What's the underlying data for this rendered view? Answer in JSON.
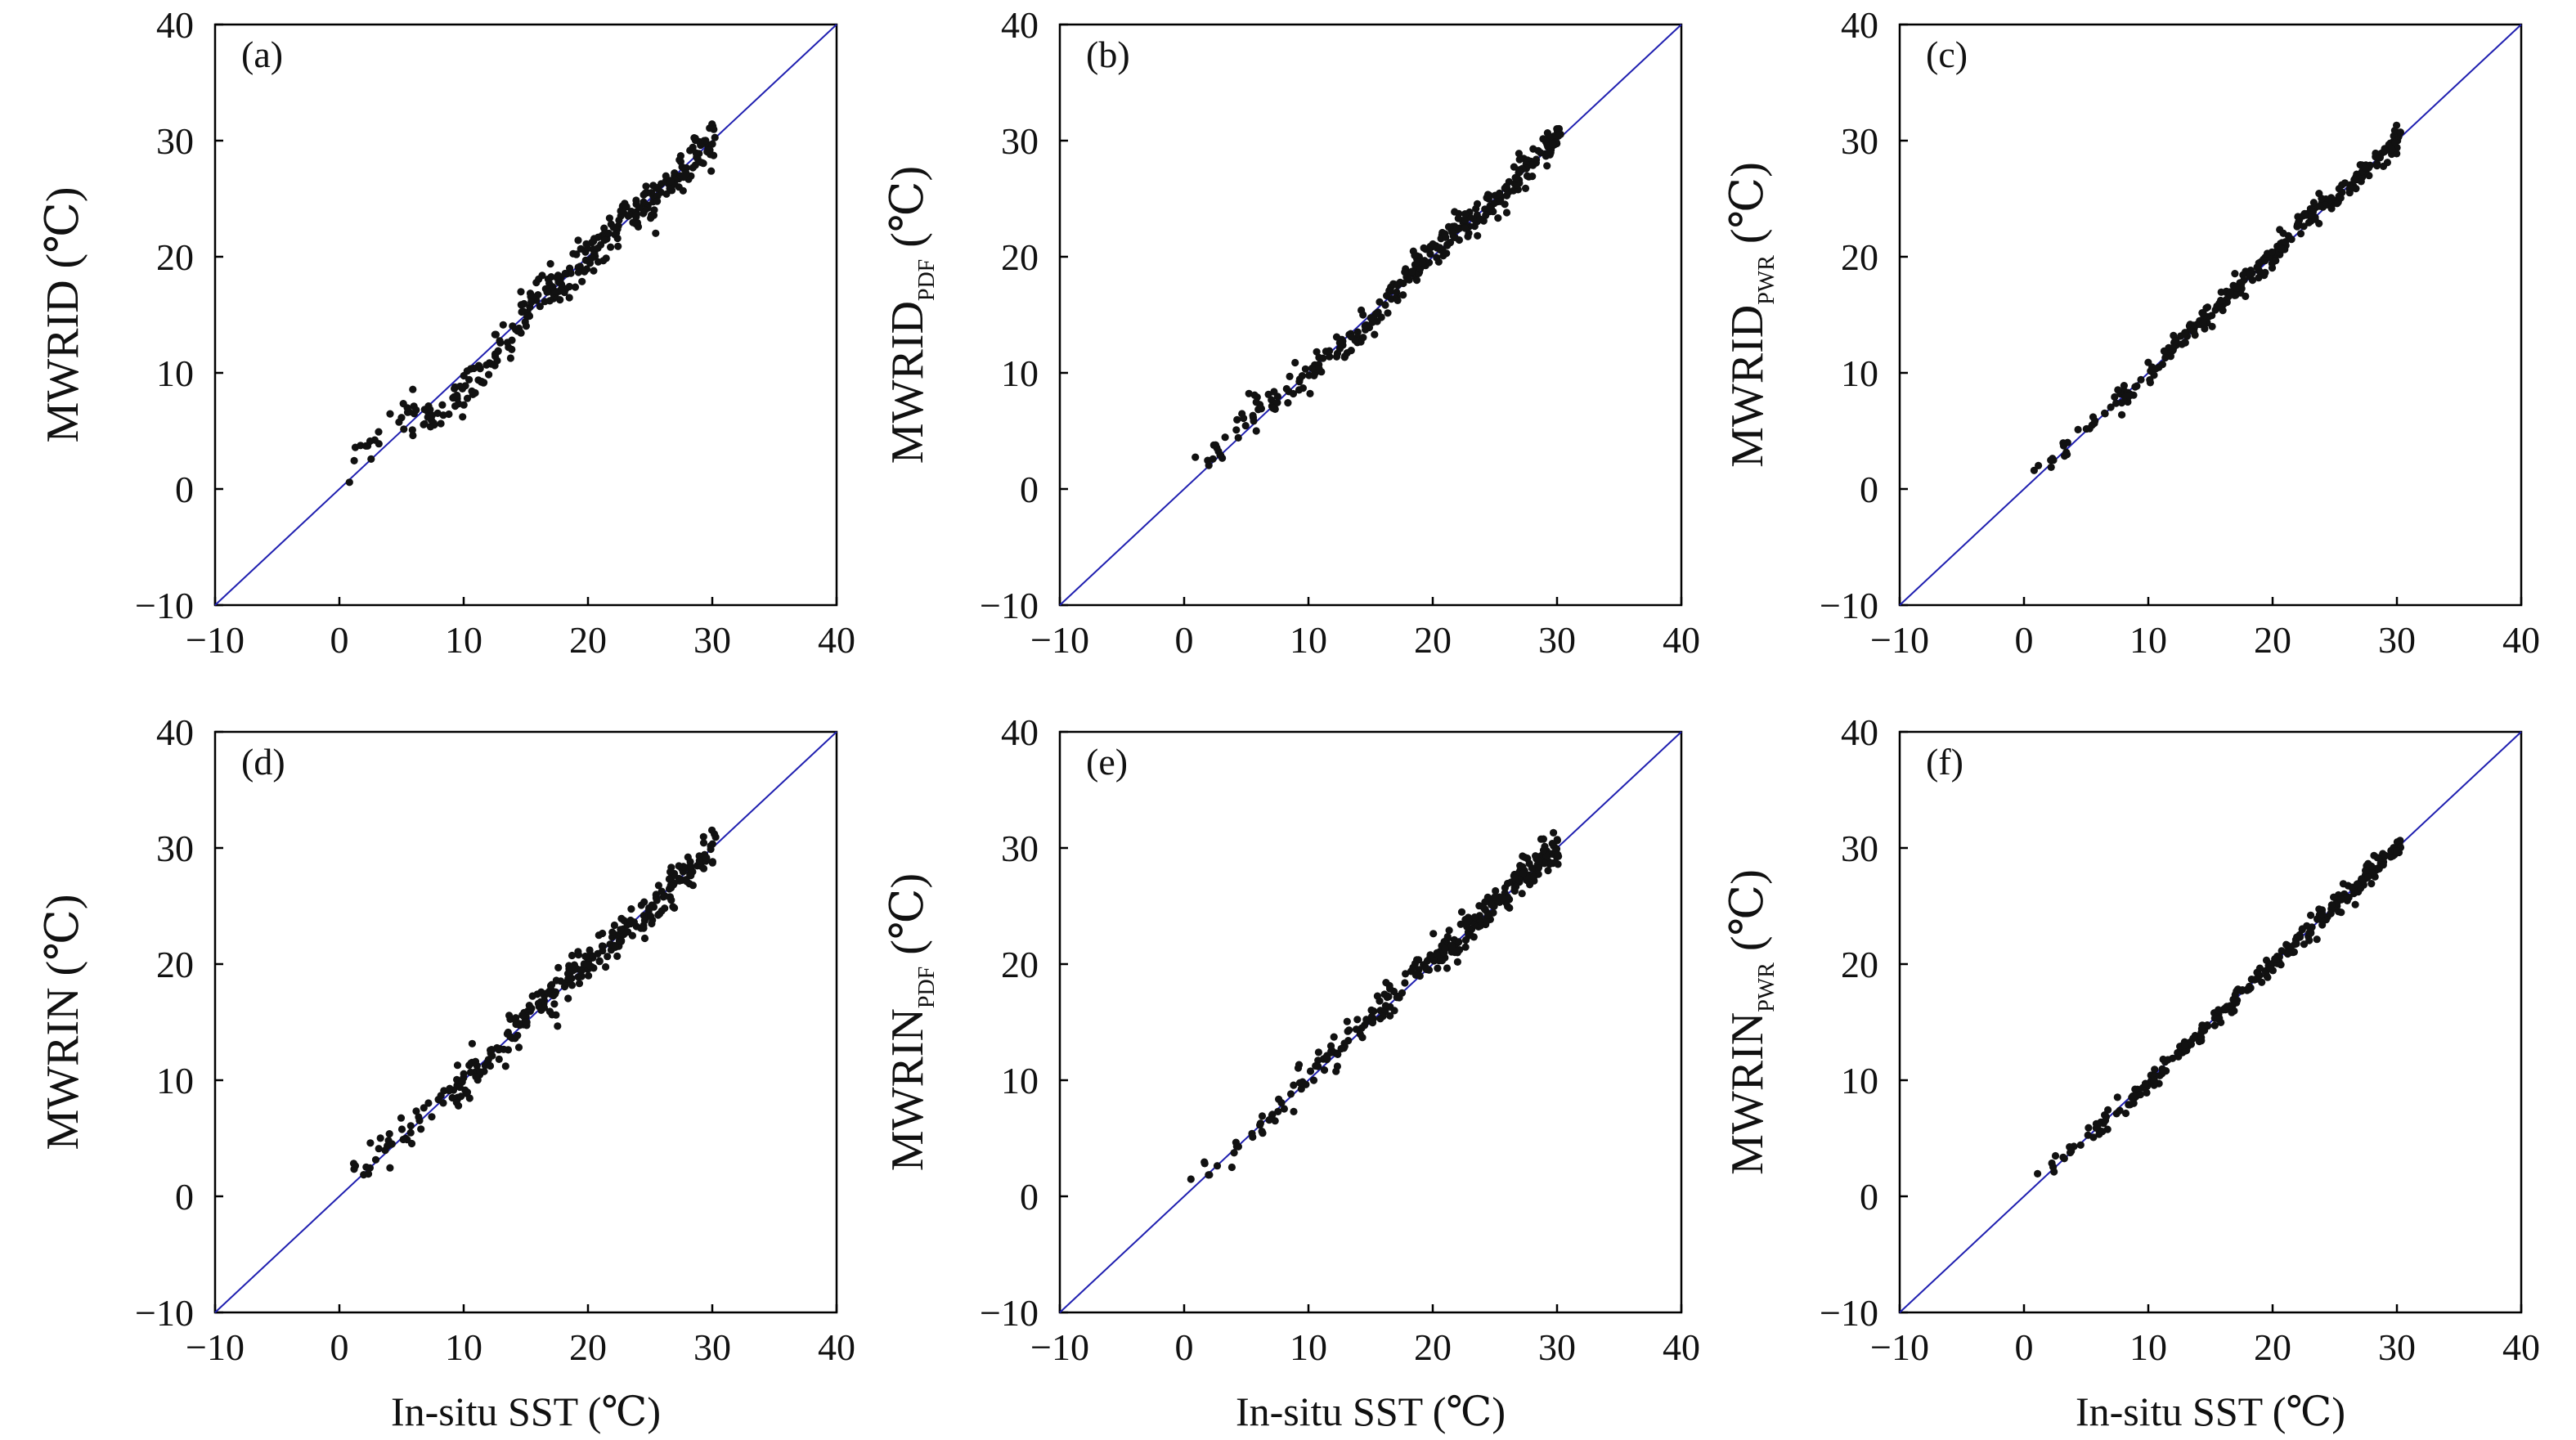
{
  "chart_data": [
    {
      "type": "scatter",
      "panel": "(a)",
      "ylabel": {
        "main": "MWRID",
        "sub": "",
        "unit": " (℃)"
      },
      "xlabel": "",
      "xlim": [
        -10,
        40
      ],
      "ylim": [
        -10,
        40
      ],
      "xticks": [
        "−10",
        "0",
        "10",
        "20",
        "30",
        "40"
      ],
      "yticks": [
        "−10",
        "0",
        "10",
        "20",
        "30",
        "40"
      ],
      "reference_line": "1:1",
      "point_count": 320,
      "spread": 1.0,
      "seed": 11,
      "bias_curve": [
        [
          0,
          1.2
        ],
        [
          5,
          1.5
        ],
        [
          8,
          -1.5
        ],
        [
          12,
          -1.5
        ],
        [
          16,
          0.5
        ],
        [
          18,
          -0.5
        ],
        [
          22,
          0.6
        ],
        [
          25,
          -0.5
        ],
        [
          30,
          0.2
        ]
      ]
    },
    {
      "type": "scatter",
      "panel": "(b)",
      "ylabel": {
        "main": "MWRID",
        "sub": "PDF",
        "unit": " (℃)"
      },
      "xlabel": "",
      "xlim": [
        -10,
        40
      ],
      "ylim": [
        -10,
        40
      ],
      "xticks": [
        "−10",
        "0",
        "10",
        "20",
        "30",
        "40"
      ],
      "yticks": [
        "−10",
        "0",
        "10",
        "20",
        "30",
        "40"
      ],
      "reference_line": "1:1",
      "point_count": 300,
      "spread": 0.75,
      "seed": 23,
      "bias_curve": [
        [
          0,
          0.8
        ],
        [
          5,
          1.0
        ],
        [
          10,
          0.0
        ],
        [
          15,
          -0.8
        ],
        [
          18,
          0.6
        ],
        [
          22,
          0.2
        ],
        [
          25,
          -0.3
        ],
        [
          30,
          0.1
        ]
      ]
    },
    {
      "type": "scatter",
      "panel": "(c)",
      "ylabel": {
        "main": "MWRID",
        "sub": "PWR",
        "unit": " (℃)"
      },
      "xlabel": "",
      "xlim": [
        -10,
        40
      ],
      "ylim": [
        -10,
        40
      ],
      "xticks": [
        "−10",
        "0",
        "10",
        "20",
        "30",
        "40"
      ],
      "yticks": [
        "−10",
        "0",
        "10",
        "20",
        "30",
        "40"
      ],
      "reference_line": "1:1",
      "point_count": 300,
      "spread": 0.55,
      "seed": 37,
      "bias_curve": [
        [
          0,
          0.3
        ],
        [
          5,
          0.2
        ],
        [
          10,
          0.0
        ],
        [
          15,
          0.2
        ],
        [
          20,
          0.0
        ],
        [
          22,
          0.8
        ],
        [
          25,
          0.0
        ],
        [
          30,
          0.0
        ]
      ]
    },
    {
      "type": "scatter",
      "panel": "(d)",
      "ylabel": {
        "main": "MWRIN",
        "sub": "",
        "unit": " (℃)"
      },
      "xlabel": "In-situ SST (℃)",
      "xlim": [
        -10,
        40
      ],
      "ylim": [
        -10,
        40
      ],
      "xticks": [
        "−10",
        "0",
        "10",
        "20",
        "30",
        "40"
      ],
      "yticks": [
        "−10",
        "0",
        "10",
        "20",
        "30",
        "40"
      ],
      "reference_line": "1:1",
      "point_count": 320,
      "spread": 0.9,
      "seed": 51,
      "bias_curve": [
        [
          0,
          1.0
        ],
        [
          5,
          0.5
        ],
        [
          10,
          -0.5
        ],
        [
          15,
          0.5
        ],
        [
          20,
          0.2
        ],
        [
          25,
          -0.3
        ],
        [
          30,
          -0.2
        ]
      ]
    },
    {
      "type": "scatter",
      "panel": "(e)",
      "ylabel": {
        "main": "MWRIN",
        "sub": "PDF",
        "unit": " (℃)"
      },
      "xlabel": "In-situ SST (℃)",
      "xlim": [
        -10,
        40
      ],
      "ylim": [
        -10,
        40
      ],
      "xticks": [
        "−10",
        "0",
        "10",
        "20",
        "30",
        "40"
      ],
      "yticks": [
        "−10",
        "0",
        "10",
        "20",
        "30",
        "40"
      ],
      "reference_line": "1:1",
      "point_count": 300,
      "spread": 0.8,
      "seed": 67,
      "bias_curve": [
        [
          0,
          0.8
        ],
        [
          5,
          -0.5
        ],
        [
          10,
          0.5
        ],
        [
          15,
          0.6
        ],
        [
          20,
          0.4
        ],
        [
          25,
          0.2
        ],
        [
          30,
          0.1
        ]
      ]
    },
    {
      "type": "scatter",
      "panel": "(f)",
      "ylabel": {
        "main": "MWRIN",
        "sub": "PWR",
        "unit": " (℃)"
      },
      "xlabel": "In-situ SST (℃)",
      "xlim": [
        -10,
        40
      ],
      "ylim": [
        -10,
        40
      ],
      "xticks": [
        "−10",
        "0",
        "10",
        "20",
        "30",
        "40"
      ],
      "yticks": [
        "−10",
        "0",
        "10",
        "20",
        "30",
        "40"
      ],
      "reference_line": "1:1",
      "point_count": 300,
      "spread": 0.5,
      "seed": 79,
      "bias_curve": [
        [
          0,
          0.2
        ],
        [
          5,
          0.3
        ],
        [
          10,
          -0.3
        ],
        [
          15,
          -0.2
        ],
        [
          20,
          0.0
        ],
        [
          25,
          0.0
        ],
        [
          30,
          0.0
        ]
      ]
    }
  ],
  "colors": {
    "points": "#111111",
    "reference_line": "#1f1fb0",
    "axes": "#000000"
  }
}
